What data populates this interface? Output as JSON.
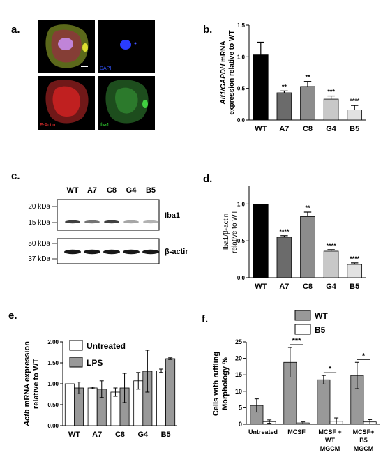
{
  "panel_a": {
    "label": "a.",
    "tiles": [
      {
        "name": "merge",
        "caption": ""
      },
      {
        "name": "dapi",
        "caption": "DAPI",
        "color": "#3355ff"
      },
      {
        "name": "factin",
        "caption": "F-Actin",
        "color": "#ff3333"
      },
      {
        "name": "iba1",
        "caption": "Iba1",
        "color": "#33dd33"
      }
    ]
  },
  "panel_b": {
    "label": "b.",
    "chart_data": {
      "type": "bar",
      "ylabel": "Aif1/GAPDH mRNA expression relative to WT",
      "ylabel_italic": "Aif1/GAPDH",
      "ylabel_rest_1": " mRNA",
      "ylabel_line_2": "expression relative to WT",
      "ylim": [
        0,
        1.5
      ],
      "yticks": [
        "0.0",
        "0.5",
        "1.0",
        "1.5"
      ],
      "categories": [
        "WT",
        "A7",
        "C8",
        "G4",
        "B5"
      ],
      "values": [
        1.03,
        0.43,
        0.53,
        0.33,
        0.16
      ],
      "errors": [
        0.2,
        0.03,
        0.08,
        0.05,
        0.07
      ],
      "significance": [
        "",
        "**",
        "**",
        "***",
        "****"
      ],
      "colors": [
        "#000000",
        "#6b6b6b",
        "#8c8c8c",
        "#c8c8c8",
        "#e2e2e2"
      ]
    }
  },
  "panel_c": {
    "label": "c.",
    "lanes": [
      "WT",
      "A7",
      "C8",
      "G4",
      "B5"
    ],
    "blot1": {
      "label": "Iba1",
      "markers": [
        "20 kDa",
        "15 kDa"
      ]
    },
    "blot2": {
      "label": "β-actin",
      "markers": [
        "50 kDa",
        "37 kDa"
      ]
    }
  },
  "panel_d": {
    "label": "d.",
    "chart_data": {
      "type": "bar",
      "ylabel_line_1": "Iba1/β-actin",
      "ylabel_line_2": "relative to WT",
      "ylim": [
        0,
        1.25
      ],
      "yticks": [
        "0.0",
        "0.5",
        "1.0"
      ],
      "categories": [
        "WT",
        "A7",
        "C8",
        "G4",
        "B5"
      ],
      "values": [
        1.0,
        0.55,
        0.83,
        0.36,
        0.18
      ],
      "errors": [
        0.0,
        0.02,
        0.06,
        0.02,
        0.02
      ],
      "significance": [
        "",
        "****",
        "**",
        "****",
        "****"
      ],
      "colors": [
        "#000000",
        "#6b6b6b",
        "#8c8c8c",
        "#c8c8c8",
        "#e2e2e2"
      ]
    }
  },
  "panel_e": {
    "label": "e.",
    "chart_data": {
      "type": "bar",
      "ylabel_italic": "Actb",
      "ylabel_rest_1": " mRNA expression",
      "ylabel_line_2": "relative to WT",
      "ylim": [
        0,
        2.0
      ],
      "yticks": [
        "0.00",
        "0.50",
        "1.00",
        "1.50",
        "2.00"
      ],
      "categories": [
        "WT",
        "A7",
        "C8",
        "G4",
        "B5"
      ],
      "series": [
        {
          "name": "Untreated",
          "values": [
            1.0,
            0.9,
            0.8,
            1.07,
            1.31
          ],
          "errors": [
            0.0,
            0.02,
            0.1,
            0.2,
            0.04
          ],
          "color": "#ffffff"
        },
        {
          "name": "LPS",
          "values": [
            0.9,
            0.87,
            0.9,
            1.3,
            1.6
          ],
          "errors": [
            0.14,
            0.2,
            0.35,
            0.5,
            0.02
          ],
          "color": "#999999"
        }
      ]
    }
  },
  "panel_f": {
    "label": "f.",
    "chart_data": {
      "type": "bar",
      "ylabel_line_1": "Cells with ruffling",
      "ylabel_line_2": "Morphology %",
      "ylim": [
        0,
        25
      ],
      "yticks": [
        "0",
        "5",
        "10",
        "15",
        "20",
        "25"
      ],
      "categories": [
        [
          "Untreated"
        ],
        [
          "MCSF"
        ],
        [
          "MCSF +",
          "WT",
          "MGCM"
        ],
        [
          "MCSF+",
          "B5",
          "MGCM"
        ]
      ],
      "series": [
        {
          "name": "WT",
          "values": [
            5.7,
            18.8,
            13.5,
            14.8
          ],
          "errors": [
            2.0,
            4.5,
            1.3,
            4.0
          ],
          "color": "#999999"
        },
        {
          "name": "B5",
          "values": [
            0.8,
            0.4,
            0.9,
            0.7
          ],
          "errors": [
            0.5,
            0.3,
            1.0,
            0.7
          ],
          "color": "#ffffff"
        }
      ],
      "significance": [
        "",
        "***",
        "*",
        "*"
      ]
    }
  }
}
